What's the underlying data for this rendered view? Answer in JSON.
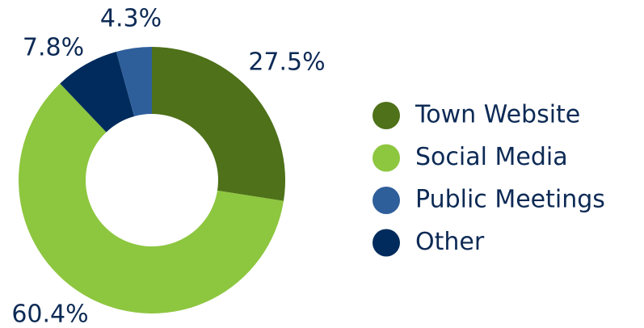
{
  "chart_data": {
    "type": "donut",
    "categories": [
      "Town Website",
      "Social Media",
      "Public Meetings",
      "Other"
    ],
    "values": [
      27.5,
      60.4,
      4.3,
      7.8
    ],
    "value_labels": [
      "27.5%",
      "60.4%",
      "4.3%",
      "7.8%"
    ],
    "colors": [
      "#4e7119",
      "#8dc63f",
      "#2f5f9b",
      "#002b5c"
    ],
    "legend": "right"
  }
}
